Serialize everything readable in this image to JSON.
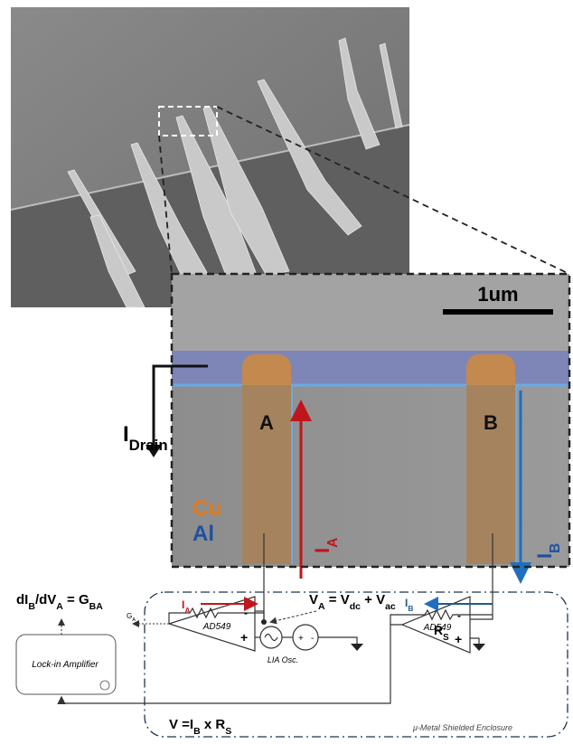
{
  "zoom": {
    "scale_bar": "1um",
    "drain_current": [
      {
        "text": "I",
        "sub": false
      },
      {
        "text": "Drain",
        "sub": true
      }
    ],
    "contact_a": "A",
    "contact_b": "B",
    "legend": [
      {
        "label": "Cu",
        "color": "#e07a1f"
      },
      {
        "label": "Al",
        "color": "#1f4fa0"
      }
    ],
    "current_a": {
      "parts": [
        {
          "text": "I",
          "sub": false
        },
        {
          "text": "A",
          "sub": true
        }
      ],
      "color": "#c0161b"
    },
    "current_b": {
      "parts": [
        {
          "text": "I",
          "sub": false
        },
        {
          "text": "B",
          "sub": true
        }
      ],
      "color": "#1f4fa0"
    }
  },
  "circuit": {
    "current_a": {
      "parts": [
        {
          "text": "I",
          "sub": false
        },
        {
          "text": "A",
          "sub": true
        }
      ],
      "color": "#c0161b"
    },
    "current_b": {
      "parts": [
        {
          "text": "I",
          "sub": false
        },
        {
          "text": "B",
          "sub": true
        }
      ],
      "color": "#1f5a8f"
    },
    "voltage": [
      {
        "text": "V",
        "sub": false
      },
      {
        "text": "A",
        "sub": true
      },
      {
        "text": " = V",
        "sub": false
      },
      {
        "text": "dc",
        "sub": true
      },
      {
        "text": " + V",
        "sub": false
      },
      {
        "text": "ac",
        "sub": true
      }
    ],
    "resistor": [
      {
        "text": "R",
        "sub": false
      },
      {
        "text": "S",
        "sub": true
      }
    ],
    "opamp_left": {
      "name": "AD549",
      "minus": "-",
      "plus": "+"
    },
    "opamp_right": {
      "name": "AD549",
      "minus": "-",
      "plus": "+"
    },
    "oscillator": "LIA Osc.",
    "dc_source": {
      "plus": "+",
      "minus": "-"
    },
    "conductance": [
      {
        "text": "dI",
        "sub": false
      },
      {
        "text": "B",
        "sub": true
      },
      {
        "text": "/dV",
        "sub": false
      },
      {
        "text": "A",
        "sub": true
      },
      {
        "text": " = G",
        "sub": false
      },
      {
        "text": "BA",
        "sub": true
      }
    ],
    "output_label": [
      {
        "text": "G",
        "sub": false
      },
      {
        "text": "A",
        "sub": true
      }
    ],
    "lock_in": "Lock-in Amplifier",
    "output_voltage": [
      {
        "text": "V =I",
        "sub": false
      },
      {
        "text": "B",
        "sub": true
      },
      {
        "text": " x R",
        "sub": false
      },
      {
        "text": "S",
        "sub": true
      }
    ],
    "enclosure": "μ-Metal Shielded Enclosure"
  }
}
